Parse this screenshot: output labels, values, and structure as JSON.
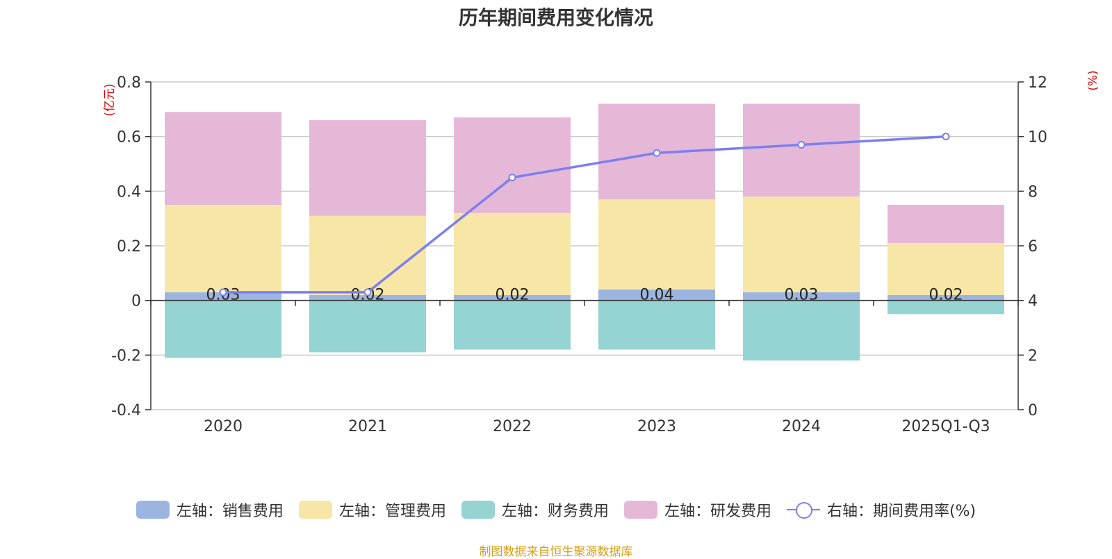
{
  "chart_data": {
    "type": "bar",
    "title": "历年期间费用变化情况",
    "categories": [
      "2020",
      "2021",
      "2022",
      "2023",
      "2024",
      "2025Q1-Q3"
    ],
    "left_axis": {
      "unit": "(亿元)",
      "ylim": [
        -0.4,
        0.8
      ],
      "ticks": [
        "-0.4",
        "-0.2",
        "0",
        "0.2",
        "0.4",
        "0.6",
        "0.8"
      ]
    },
    "right_axis": {
      "unit": "(%)",
      "ylim": [
        0,
        12
      ],
      "ticks": [
        "0",
        "2",
        "4",
        "6",
        "8",
        "10",
        "12"
      ]
    },
    "series": [
      {
        "name": "左轴：销售费用",
        "type": "bar",
        "axis": "left",
        "color": "#9bb5e0",
        "values": [
          0.03,
          0.02,
          0.02,
          0.04,
          0.03,
          0.02
        ],
        "labels": [
          "0.03",
          "0.02",
          "0.02",
          "0.04",
          "0.03",
          "0.02"
        ]
      },
      {
        "name": "左轴：管理费用",
        "type": "bar",
        "axis": "left",
        "color": "#f8e6a6",
        "values": [
          0.32,
          0.29,
          0.3,
          0.33,
          0.35,
          0.19
        ]
      },
      {
        "name": "左轴：财务费用",
        "type": "bar",
        "axis": "left",
        "color": "#96d3d3",
        "values": [
          -0.21,
          -0.19,
          -0.18,
          -0.18,
          -0.22,
          -0.05
        ]
      },
      {
        "name": "左轴：研发费用",
        "type": "bar",
        "axis": "left",
        "color": "#e6b8d8",
        "values": [
          0.34,
          0.35,
          0.35,
          0.35,
          0.34,
          0.14
        ]
      },
      {
        "name": "右轴：期间费用率(%)",
        "type": "line",
        "axis": "right",
        "color": "#7b7ff0",
        "values": [
          4.3,
          4.3,
          8.5,
          9.4,
          9.7,
          10.0
        ]
      }
    ],
    "source": "制图数据来自恒生聚源数据库"
  }
}
